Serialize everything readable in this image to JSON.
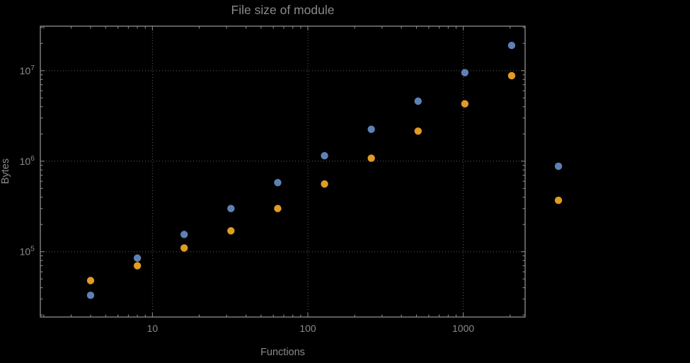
{
  "chart_data": {
    "type": "scatter",
    "title": "File size of module",
    "xlabel": "Functions",
    "ylabel": "Bytes",
    "x_scale": "log",
    "y_scale": "log",
    "xlim": [
      1.9,
      2500
    ],
    "ylim": [
      19000,
      31000000
    ],
    "grid": true,
    "legend": "none",
    "x": [
      4,
      8,
      16,
      32,
      64,
      128,
      256,
      512,
      1024,
      2048,
      4096
    ],
    "series": [
      {
        "name": "series-blue",
        "color": "#5e81b5",
        "values": [
          33000,
          85000,
          155000,
          300000,
          580000,
          1150000,
          2250000,
          4600000,
          9500000,
          19000000,
          880000
        ]
      },
      {
        "name": "series-orange",
        "color": "#e19c24",
        "values": [
          48000,
          70000,
          110000,
          170000,
          300000,
          560000,
          1080000,
          2150000,
          4300000,
          8800000,
          370000
        ]
      }
    ],
    "x_ticks": [
      10,
      100,
      1000
    ],
    "y_tick_exponents": [
      5,
      6,
      7
    ],
    "marker_radius": 5.2
  }
}
